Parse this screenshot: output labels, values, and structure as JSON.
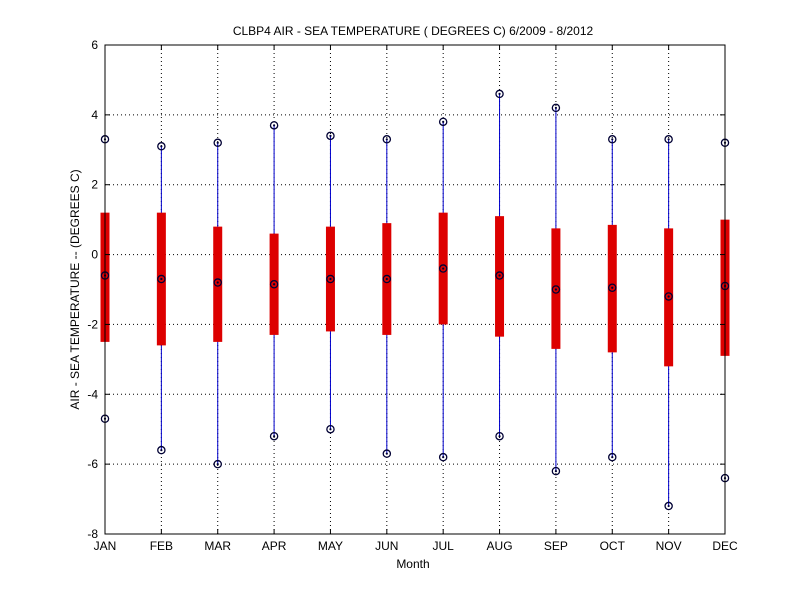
{
  "chart_data": {
    "type": "boxplot",
    "title": "CLBP4  AIR - SEA TEMPERATURE ( DEGREES C) 6/2009 - 8/2012",
    "xlabel": "Month",
    "ylabel": "AIR - SEA TEMPERATURE -- (DEGREES C)",
    "ylim": [
      -8,
      6
    ],
    "yticks": [
      -8,
      -6,
      -4,
      -2,
      0,
      2,
      4,
      6
    ],
    "grid": true,
    "categories": [
      "JAN",
      "FEB",
      "MAR",
      "APR",
      "MAY",
      "JUN",
      "JUL",
      "AUG",
      "SEP",
      "OCT",
      "NOV",
      "DEC"
    ],
    "min": [
      -4.7,
      -5.6,
      -6.0,
      -5.2,
      -5.0,
      -5.7,
      -5.8,
      -5.2,
      -6.2,
      -5.8,
      -7.2,
      -6.4
    ],
    "max": [
      3.3,
      3.1,
      3.2,
      3.7,
      3.4,
      3.3,
      3.8,
      4.6,
      4.2,
      3.3,
      3.3,
      3.2
    ],
    "q1": [
      -2.5,
      -2.6,
      -2.5,
      -2.3,
      -2.2,
      -2.3,
      -2.0,
      -2.35,
      -2.7,
      -2.8,
      -3.2,
      -2.9
    ],
    "q3": [
      1.2,
      1.2,
      0.8,
      0.6,
      0.8,
      0.9,
      1.2,
      1.1,
      0.75,
      0.85,
      0.75,
      1.0
    ],
    "median": [
      -0.6,
      -0.7,
      -0.8,
      -0.85,
      -0.7,
      -0.7,
      -0.4,
      -0.6,
      -1.0,
      -0.95,
      -1.2,
      -0.9
    ],
    "colors": {
      "whisker": "#0000cc",
      "box": "#dd0000",
      "marker": "#000033"
    }
  }
}
